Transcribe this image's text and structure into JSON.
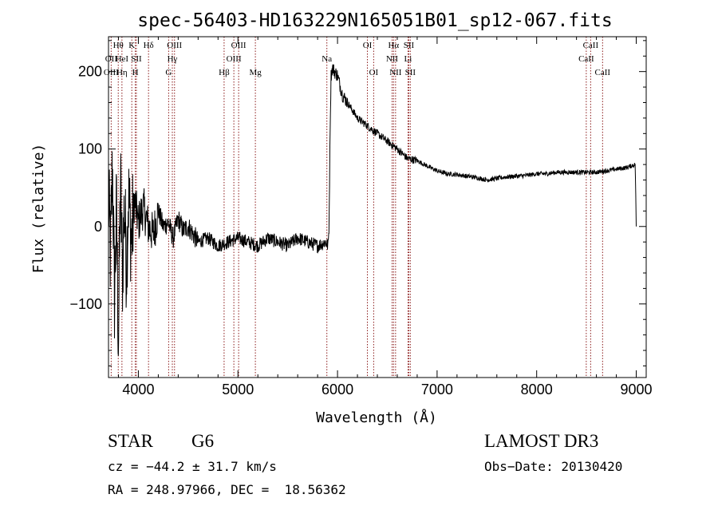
{
  "chart_data": {
    "type": "line",
    "title": "spec-56403-HD163229N165051B01_sp12-067.fits",
    "xlabel": "Wavelength (Å)",
    "ylabel": "Flux (relative)",
    "xlim": [
      3700,
      9100
    ],
    "ylim": [
      -195,
      245
    ],
    "xticks": [
      4000,
      5000,
      6000,
      7000,
      8000,
      9000
    ],
    "xtick_labels": [
      "4000",
      "5000",
      "6000",
      "7000",
      "8000",
      "9000"
    ],
    "yticks": [
      -100,
      0,
      100,
      200
    ],
    "ytick_labels": [
      "−100",
      "0",
      "100",
      "200"
    ],
    "series": [
      {
        "name": "spectrum",
        "x": [
          3700,
          3720,
          3740,
          3760,
          3780,
          3800,
          3820,
          3840,
          3860,
          3880,
          3900,
          3930,
          3960,
          4000,
          4050,
          4100,
          4150,
          4200,
          4250,
          4300,
          4350,
          4400,
          4450,
          4500,
          4600,
          4700,
          4800,
          4900,
          5000,
          5100,
          5200,
          5300,
          5400,
          5500,
          5600,
          5700,
          5800,
          5880,
          5905,
          5915,
          5925,
          5935,
          5950,
          5970,
          6000,
          6050,
          6100,
          6150,
          6200,
          6300,
          6400,
          6500,
          6600,
          6700,
          6800,
          6900,
          7000,
          7100,
          7200,
          7300,
          7400,
          7500,
          7600,
          7700,
          7800,
          7900,
          8000,
          8100,
          8200,
          8300,
          8400,
          8500,
          8600,
          8700,
          8800,
          8900,
          8990,
          9000
        ],
        "values": [
          40,
          -40,
          80,
          -90,
          20,
          -150,
          60,
          -60,
          30,
          -50,
          40,
          -20,
          35,
          5,
          25,
          0,
          -10,
          20,
          0,
          5,
          -15,
          10,
          -5,
          0,
          -20,
          -15,
          -25,
          -20,
          -15,
          -20,
          -25,
          -15,
          -20,
          -25,
          -15,
          -20,
          -25,
          -20,
          -25,
          0,
          120,
          195,
          205,
          200,
          195,
          170,
          160,
          150,
          140,
          130,
          120,
          110,
          100,
          88,
          85,
          78,
          72,
          68,
          67,
          65,
          63,
          60,
          62,
          64,
          65,
          66,
          68,
          68,
          70,
          70,
          70,
          70,
          70,
          72,
          74,
          76,
          80,
          0
        ]
      }
    ],
    "line_labels": [
      {
        "text": "Hθ",
        "wl": 3798,
        "row": 0,
        "color": "#8B1A1A"
      },
      {
        "text": "OII",
        "wl": 3727,
        "row": 1,
        "color": "#8B1A1A"
      },
      {
        "text": "OIII",
        "wl": 3727,
        "row": 2,
        "color": "#8B1A1A"
      },
      {
        "text": "HeI",
        "wl": 3835,
        "row": 1,
        "color": "#8B1A1A"
      },
      {
        "text": "Hη",
        "wl": 3835,
        "row": 2,
        "color": "#8B1A1A"
      },
      {
        "text": "K",
        "wl": 3934,
        "row": 0,
        "color": "#8B1A1A"
      },
      {
        "text": "SII",
        "wl": 3980,
        "row": 1,
        "color": "#8B1A1A"
      },
      {
        "text": "H",
        "wl": 3969,
        "row": 2,
        "color": "#8B1A1A"
      },
      {
        "text": "Hδ",
        "wl": 4102,
        "row": 0,
        "color": "#8B1A1A"
      },
      {
        "text": "OIII",
        "wl": 4363,
        "row": 0,
        "color": "#8B1A1A"
      },
      {
        "text": "Hγ",
        "wl": 4341,
        "row": 1,
        "color": "#8B1A1A"
      },
      {
        "text": "G",
        "wl": 4304,
        "row": 2,
        "color": "#8B1A1A"
      },
      {
        "text": "OIII",
        "wl": 5007,
        "row": 0,
        "color": "#8B1A1A"
      },
      {
        "text": "OIII",
        "wl": 4959,
        "row": 1,
        "color": "#8B1A1A"
      },
      {
        "text": "Hβ",
        "wl": 4861,
        "row": 2,
        "color": "#8B1A1A"
      },
      {
        "text": "Mg",
        "wl": 5175,
        "row": 2,
        "color": "#8B1A1A"
      },
      {
        "text": "Na",
        "wl": 5893,
        "row": 1,
        "color": "#8B1A1A"
      },
      {
        "text": "OI",
        "wl": 6300,
        "row": 0,
        "color": "#8B1A1A"
      },
      {
        "text": "OI",
        "wl": 6363,
        "row": 2,
        "color": "#8B1A1A"
      },
      {
        "text": "Hα",
        "wl": 6563,
        "row": 0,
        "color": "#8B1A1A"
      },
      {
        "text": "SII",
        "wl": 6716,
        "row": 0,
        "color": "#8B1A1A"
      },
      {
        "text": "NII",
        "wl": 6548,
        "row": 1,
        "color": "#8B1A1A"
      },
      {
        "text": "Li",
        "wl": 6708,
        "row": 1,
        "color": "#8B1A1A"
      },
      {
        "text": "NII",
        "wl": 6583,
        "row": 2,
        "color": "#8B1A1A"
      },
      {
        "text": "SII",
        "wl": 6731,
        "row": 2,
        "color": "#8B1A1A"
      },
      {
        "text": "CaII",
        "wl": 8542,
        "row": 0,
        "color": "#8B1A1A"
      },
      {
        "text": "CaII",
        "wl": 8498,
        "row": 1,
        "color": "#8B1A1A"
      },
      {
        "text": "CaII",
        "wl": 8662,
        "row": 2,
        "color": "#8B1A1A"
      }
    ]
  },
  "info": {
    "class": "STAR",
    "subclass": "G6",
    "survey": "LAMOST DR3",
    "cz": "cz = −44.2 ± 31.7 km/s",
    "obs_date": "Obs−Date: 20130420",
    "coords": "RA = 248.97966, DEC =  18.56362"
  },
  "colors": {
    "line_marker": "#8B1A1A",
    "spectrum": "#000000"
  }
}
